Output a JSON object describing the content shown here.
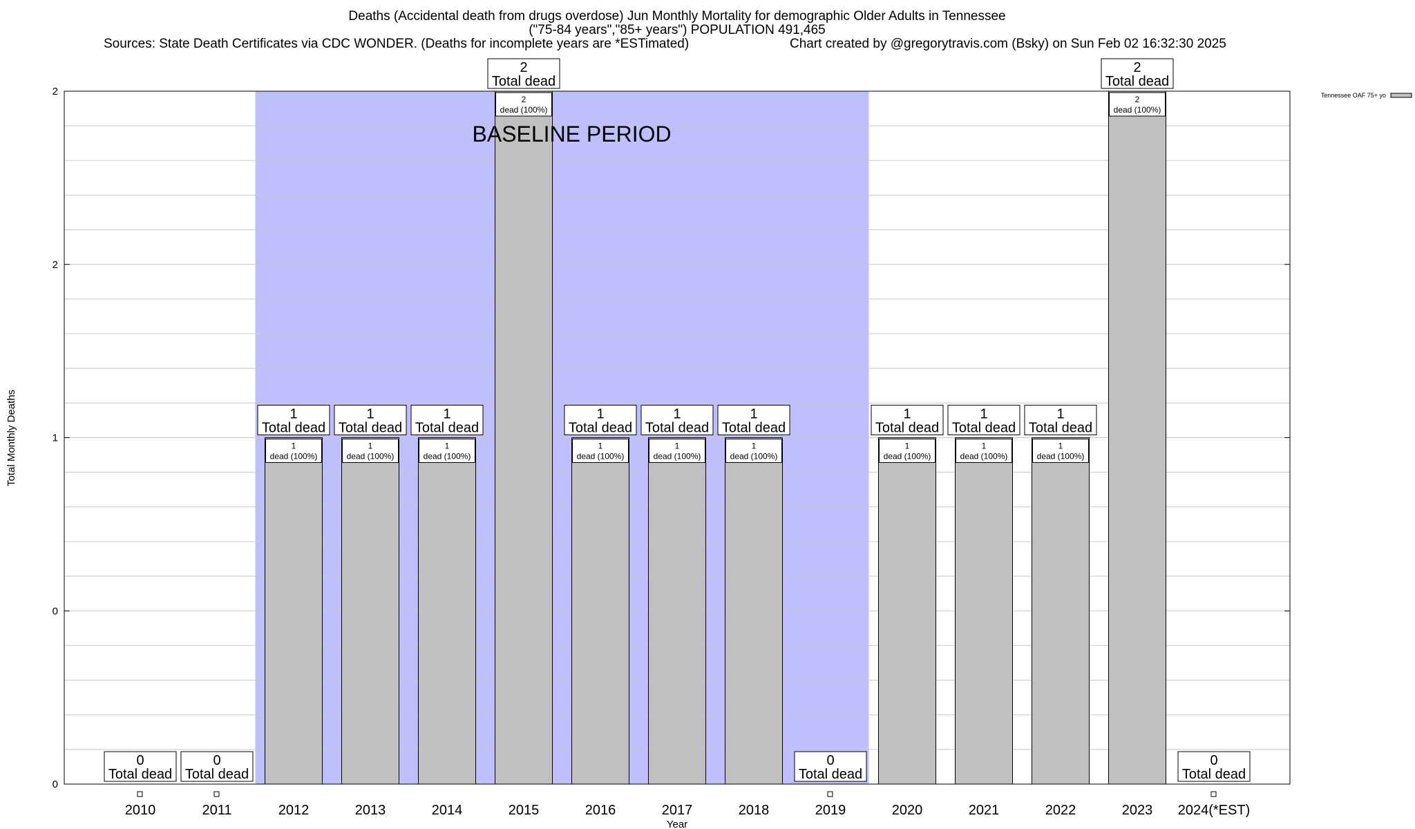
{
  "header": {
    "title_line1": "Deaths (Accidental death from drugs overdose) Jun Monthly Mortality for demographic Older Adults in Tennessee",
    "title_line2": "(\"75-84 years\",\"85+ years\") POPULATION 491,465",
    "sources": "Sources: State Death Certificates via CDC WONDER. (Deaths for incomplete years are *ESTimated)",
    "credit": "Chart created by @gregorytravis.com (Bsky) on Sun Feb 02 16:32:30 2025"
  },
  "chart_data": {
    "type": "bar",
    "xlabel": "Year",
    "ylabel": "Total Monthly Deaths",
    "ylim": [
      0,
      2
    ],
    "y_tick_labels": [
      "0",
      "0",
      "1",
      "2",
      "2"
    ],
    "grid": true,
    "legend": {
      "placement": "top-right",
      "entry": "Tennessee OAF 75+ yo"
    },
    "baseline": {
      "label": "BASELINE PERIOD",
      "from": "2012",
      "to": "2019",
      "color": "#bfbffe"
    },
    "bar_color": "#c0c0c0",
    "categories": [
      "2010",
      "2011",
      "2012",
      "2013",
      "2014",
      "2015",
      "2016",
      "2017",
      "2018",
      "2019",
      "2020",
      "2021",
      "2022",
      "2023",
      "2024(*EST)"
    ],
    "series": [
      {
        "name": "Tennessee OAF 75+ yo",
        "values": [
          0,
          0,
          1,
          1,
          1,
          2,
          1,
          1,
          1,
          0,
          1,
          1,
          1,
          2,
          0
        ]
      }
    ],
    "total_label_suffix": "Total dead",
    "bar_label_suffix": "dead (100%)"
  }
}
